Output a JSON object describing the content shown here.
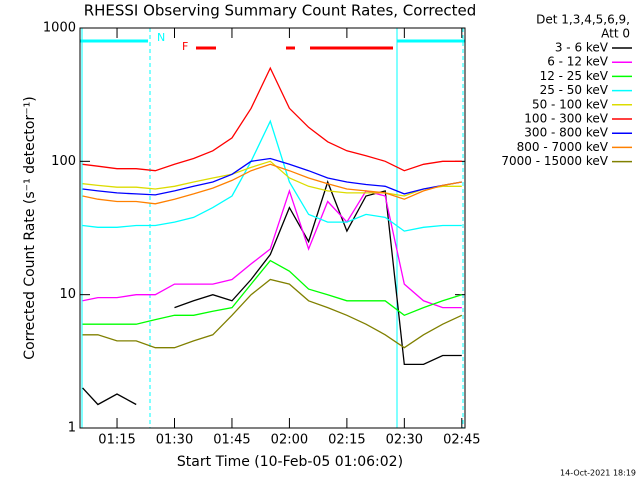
{
  "chart_data": {
    "type": "line",
    "title": "RHESSI Observing Summary Count Rates, Corrected",
    "x_label": "Start Time (10-Feb-05 01:06:02)",
    "y_label": "Corrected Count Rate (s⁻¹ detector⁻¹)",
    "legend_title": [
      "Det 1,3,4,5,6,9,",
      "Att 0"
    ],
    "legend": "outside-right",
    "footer": "14-Oct-2021 18:19",
    "annotations": [
      "N",
      "F"
    ],
    "log_y": true,
    "ylim": [
      1,
      1000
    ],
    "yticks": [
      1,
      10,
      100,
      1000
    ],
    "xlim": [
      "01:05:20",
      "02:45:50"
    ],
    "xticks": [
      "01:15",
      "01:30",
      "01:45",
      "02:00",
      "02:15",
      "02:30",
      "02:45"
    ],
    "x": [
      "01:06",
      "01:10",
      "01:15",
      "01:20",
      "01:25",
      "01:30",
      "01:35",
      "01:40",
      "01:45",
      "01:50",
      "01:55",
      "02:00",
      "02:05",
      "02:10",
      "02:15",
      "02:20",
      "02:25",
      "02:30",
      "02:35",
      "02:40",
      "02:45"
    ],
    "series": [
      {
        "name": "3 - 6 keV",
        "color": "#000000",
        "values": [
          2,
          1.5,
          1.8,
          1.5,
          null,
          8,
          9,
          10,
          9,
          13,
          20,
          45,
          25,
          70,
          30,
          55,
          60,
          3,
          3,
          3.5,
          3.5
        ]
      },
      {
        "name": "6 - 12 keV",
        "color": "#ff00ff",
        "values": [
          9,
          9.5,
          9.5,
          10,
          10,
          12,
          12,
          12,
          13,
          17,
          22,
          60,
          22,
          50,
          35,
          60,
          55,
          12,
          9,
          8,
          8
        ]
      },
      {
        "name": "12 - 25 keV",
        "color": "#00ff00",
        "values": [
          6,
          6,
          6,
          6,
          6.5,
          7,
          7,
          7.5,
          8,
          12,
          18,
          15,
          11,
          10,
          9,
          9,
          9,
          7,
          8,
          9,
          10
        ]
      },
      {
        "name": "25 - 50 keV",
        "color": "#00ffff",
        "values": [
          33,
          32,
          32,
          33,
          33,
          35,
          38,
          45,
          55,
          100,
          200,
          70,
          40,
          35,
          35,
          40,
          38,
          30,
          32,
          33,
          33
        ]
      },
      {
        "name": "50 - 100 keV",
        "color": "#dcdc00",
        "values": [
          68,
          66,
          64,
          64,
          62,
          65,
          70,
          75,
          80,
          90,
          100,
          75,
          65,
          60,
          58,
          58,
          58,
          55,
          62,
          65,
          65
        ]
      },
      {
        "name": "100 - 300 keV",
        "color": "#ff0000",
        "values": [
          95,
          92,
          88,
          88,
          85,
          95,
          105,
          120,
          150,
          250,
          500,
          250,
          180,
          140,
          120,
          110,
          100,
          85,
          95,
          100,
          100
        ]
      },
      {
        "name": "300 - 800 keV",
        "color": "#0000ff",
        "values": [
          62,
          60,
          58,
          57,
          56,
          60,
          65,
          70,
          80,
          100,
          105,
          95,
          85,
          75,
          70,
          67,
          65,
          57,
          62,
          66,
          70
        ]
      },
      {
        "name": "800 - 7000 keV",
        "color": "#ff8000",
        "values": [
          55,
          52,
          50,
          50,
          48,
          52,
          57,
          63,
          72,
          85,
          95,
          85,
          75,
          68,
          62,
          60,
          58,
          52,
          60,
          66,
          70
        ]
      },
      {
        "name": "7000 - 15000 keV",
        "color": "#808000",
        "values": [
          5,
          5,
          4.5,
          4.5,
          4,
          4,
          4.5,
          5,
          7,
          10,
          13,
          12,
          9,
          8,
          7,
          6,
          5,
          4,
          5,
          6,
          7
        ]
      }
    ]
  }
}
